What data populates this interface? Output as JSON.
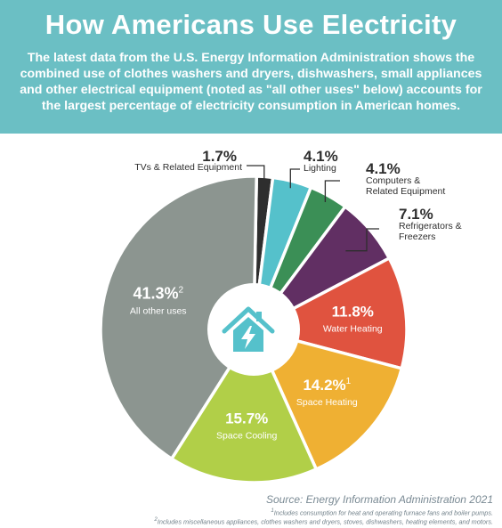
{
  "header": {
    "title": "How Americans Use Electricity",
    "subtitle": "The latest data from the U.S. Energy Information Administration shows the combined use of clothes washers and dryers, dishwashers, small appliances and other electrical equipment (noted as \"all other uses\" below) accounts for the largest percentage of electricity consumption in American homes."
  },
  "chart_data": {
    "type": "pie",
    "style": "donut",
    "categories": [
      "TVs & Related Equipment",
      "Lighting",
      "Computers & Related Equipment",
      "Refrigerators & Freezers",
      "Water Heating",
      "Space Heating",
      "Space Cooling",
      "All other uses"
    ],
    "values": [
      1.7,
      4.1,
      4.1,
      7.1,
      11.8,
      14.2,
      15.7,
      41.3
    ],
    "value_labels": [
      "1.7%",
      "4.1%",
      "4.1%",
      "7.1%",
      "11.8%",
      "14.2%",
      "15.7%",
      "41.3%"
    ],
    "superscripts": [
      "",
      "",
      "",
      "",
      "",
      "1",
      "",
      "2"
    ],
    "colors": [
      "#2e2e2e",
      "#55c1cb",
      "#3b8f56",
      "#612f63",
      "#e0533f",
      "#efb033",
      "#b1cf48",
      "#8c9590"
    ],
    "label_placement": [
      "outside",
      "outside",
      "outside",
      "outside",
      "inside",
      "inside",
      "inside",
      "inside"
    ],
    "center_icon": "house-lightning-icon"
  },
  "footer": {
    "source": "Source: Energy Information Administration 2021",
    "footnote_1": "Includes consumption for heat and operating furnace fans and boiler pumps.",
    "footnote_2": "Includes miscellaneous appliances, clothes washers and dryers, stoves, dishwashers, heating elements, and motors.",
    "footnote_1_marker": "1",
    "footnote_2_marker": "2"
  }
}
